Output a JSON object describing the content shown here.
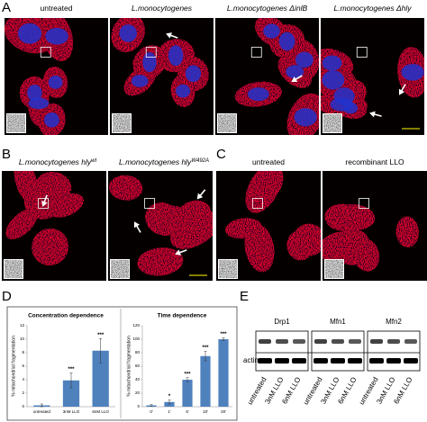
{
  "figure": {
    "A": {
      "letter": "A",
      "images": [
        {
          "name": "untreated"
        },
        {
          "name": "L.monocytogenes"
        },
        {
          "name": "L.monocytogenes ΔinlB"
        },
        {
          "name": "L.monocytogenes Δhly"
        }
      ],
      "scale_bar": "25µm"
    },
    "B": {
      "letter": "B",
      "images": [
        {
          "name": "L.monocytogenes hly",
          "sup": "wt"
        },
        {
          "name": "L.monocytogenes hly",
          "sup": "W492A"
        }
      ],
      "scale_bar": "25µm"
    },
    "C": {
      "letter": "C",
      "images": [
        {
          "name": "untreated"
        },
        {
          "name": "recombinant LLO"
        }
      ]
    },
    "D": {
      "letter": "D"
    },
    "E": {
      "letter": "E",
      "proteins": [
        "Drp1",
        "Mfn1",
        "Mfn2"
      ],
      "loading": "actin",
      "lanes": [
        "untreated",
        "3nM LLO",
        "6nM LLO"
      ]
    }
  },
  "chart_data": [
    {
      "type": "bar",
      "title": "Concentration dependence",
      "y_label": "% mitochondrial fragmentation",
      "categories": [
        "untreated",
        "3nM LLO",
        "6nM LLO"
      ],
      "values": [
        0.2,
        3.9,
        8.3
      ],
      "errors": [
        0.2,
        1.1,
        1.8
      ],
      "significance": [
        null,
        "***",
        "***"
      ],
      "color": "#4f81bd",
      "ylim": [
        0,
        12
      ],
      "yticks": [
        0,
        2,
        4,
        6,
        8,
        10,
        12
      ]
    },
    {
      "type": "bar",
      "title": "Time dependence",
      "y_label": "% mitochondrial fragmentation",
      "categories": [
        "0'",
        "1'",
        "5'",
        "10'",
        "20'"
      ],
      "values": [
        2,
        7,
        40,
        75,
        100
      ],
      "errors": [
        1,
        3,
        3,
        7,
        2
      ],
      "significance": [
        null,
        "*",
        "***",
        "***",
        "***"
      ],
      "color": "#4f81bd",
      "ylim": [
        0,
        120
      ],
      "yticks": [
        0,
        20,
        40,
        60,
        80,
        100,
        120
      ]
    }
  ]
}
